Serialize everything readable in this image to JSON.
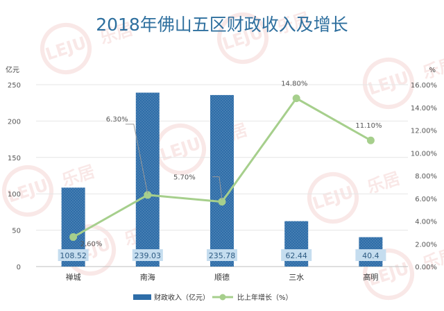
{
  "title": "2018年佛山五区财政收入及增长",
  "watermark": {
    "logo_text": "LEJU",
    "brand": "乐居",
    "colors": {
      "mark": "#e8a8a8"
    }
  },
  "colors": {
    "bar": "#2e6da8",
    "bar_dots": "#ffffff",
    "line": "#a6cf8c",
    "title": "#2e6f9e",
    "bar_label_bg": "#c5ddef",
    "grid": "#e6e6e6"
  },
  "chart_data": {
    "type": "bar+line",
    "categories": [
      "禅城",
      "南海",
      "顺德",
      "三水",
      "高明"
    ],
    "series": [
      {
        "name": "财政收入（亿元）",
        "type": "bar",
        "axis": "left",
        "values": [
          108.52,
          239.03,
          235.78,
          62.44,
          40.4
        ],
        "labels": [
          "108.52",
          "239.03",
          "235.78",
          "62.44",
          "40.4"
        ]
      },
      {
        "name": "比上年增长（%）",
        "type": "line",
        "axis": "right",
        "values": [
          2.6,
          6.3,
          5.7,
          14.8,
          11.1
        ],
        "labels": [
          "2.60%",
          "6.30%",
          "5.70%",
          "14.80%",
          "11.10%"
        ]
      }
    ],
    "y_left": {
      "unit": "亿元",
      "ticks": [
        "0",
        "50",
        "100",
        "150",
        "200",
        "250"
      ],
      "range": [
        0,
        250
      ]
    },
    "y_right": {
      "unit": "%",
      "ticks": [
        "0.00%",
        "2.00%",
        "4.00%",
        "6.00%",
        "8.00%",
        "10.00%",
        "12.00%",
        "14.00%",
        "16.00%"
      ],
      "range": [
        0,
        16
      ]
    },
    "grid": true,
    "legend_position": "bottom"
  }
}
